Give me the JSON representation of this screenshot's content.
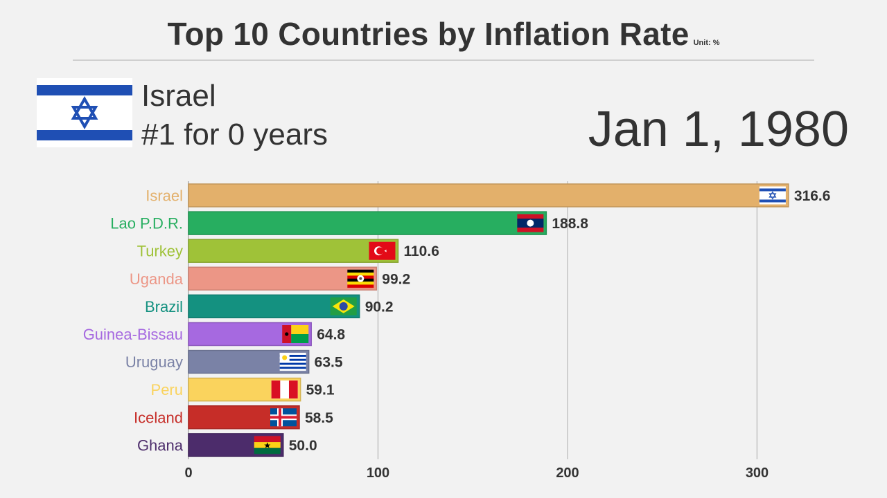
{
  "header": {
    "title": "Top 10 Countries by Inflation Rate",
    "unit": "Unit: %"
  },
  "leader": {
    "name": "Israel",
    "streak": "#1 for 0 years",
    "flag_icon": "israel-flag-icon"
  },
  "date": "Jan 1, 1980",
  "chart_data": {
    "type": "bar",
    "orientation": "horizontal",
    "title": "Top 10 Countries by Inflation Rate",
    "xlabel": "",
    "ylabel": "",
    "xlim": [
      0,
      350
    ],
    "xticks": [
      0,
      100,
      200,
      300
    ],
    "grid": true,
    "categories": [
      "Israel",
      "Lao P.D.R.",
      "Turkey",
      "Uganda",
      "Brazil",
      "Guinea-Bissau",
      "Uruguay",
      "Peru",
      "Iceland",
      "Ghana"
    ],
    "values": [
      316.6,
      188.8,
      110.6,
      99.2,
      90.2,
      64.8,
      63.5,
      59.1,
      58.5,
      50.0
    ],
    "value_labels": [
      "316.6",
      "188.8",
      "110.6",
      "99.2",
      "90.2",
      "64.8",
      "63.5",
      "59.1",
      "58.5",
      "50.0"
    ],
    "colors": [
      "#e3b06b",
      "#27ae60",
      "#9fc238",
      "#ec9686",
      "#149180",
      "#a669e0",
      "#7a82a6",
      "#fad35d",
      "#c62d28",
      "#4c2c6b"
    ],
    "flag_icons": [
      "israel-flag-icon",
      "laos-flag-icon",
      "turkey-flag-icon",
      "uganda-flag-icon",
      "brazil-flag-icon",
      "guinea-bissau-flag-icon",
      "uruguay-flag-icon",
      "peru-flag-icon",
      "iceland-flag-icon",
      "ghana-flag-icon"
    ]
  }
}
